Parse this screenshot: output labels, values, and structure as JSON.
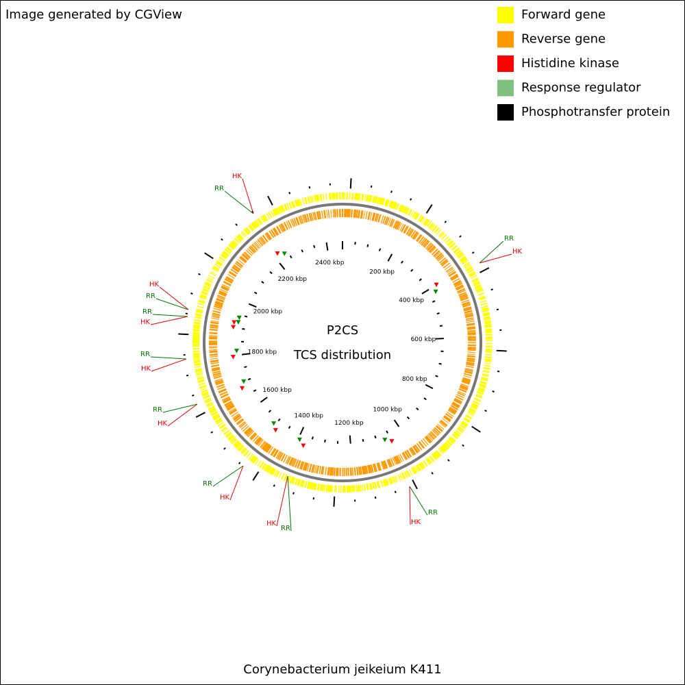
{
  "header": {
    "caption": "Image generated by CGView"
  },
  "legend": [
    {
      "label": "Forward gene",
      "color": "#ffff00"
    },
    {
      "label": "Reverse gene",
      "color": "#ff9900"
    },
    {
      "label": "Histidine kinase",
      "color": "#ff0000"
    },
    {
      "label": "Response regulator",
      "color": "#80c080"
    },
    {
      "label": "Phosphotransfer protein",
      "color": "#000000"
    }
  ],
  "center": {
    "title": "P2CS",
    "subtitle": "TCS distribution"
  },
  "ruler": [
    "200 kbp",
    "400 kbp",
    "600 kbp",
    "800 kbp",
    "1000 kbp",
    "1200 kbp",
    "1400 kbp",
    "1600 kbp",
    "1800 kbp",
    "2000 kbp",
    "2200 kbp",
    "2400 kbp"
  ],
  "callouts": [
    {
      "labels": [
        {
          "text": "HK",
          "color": "#dd0000"
        },
        {
          "text": "RR",
          "color": "#007700"
        }
      ]
    },
    {
      "labels": [
        {
          "text": "RR",
          "color": "#007700"
        },
        {
          "text": "HK",
          "color": "#dd0000"
        }
      ]
    },
    {
      "labels": [
        {
          "text": "HK",
          "color": "#dd0000"
        },
        {
          "text": "RR",
          "color": "#007700"
        }
      ]
    },
    {
      "labels": [
        {
          "text": "RR",
          "color": "#007700"
        },
        {
          "text": "HK",
          "color": "#dd0000"
        }
      ]
    },
    {
      "labels": [
        {
          "text": "RR",
          "color": "#007700"
        },
        {
          "text": "HK",
          "color": "#dd0000"
        }
      ]
    },
    {
      "labels": [
        {
          "text": "RR",
          "color": "#007700"
        },
        {
          "text": "HK",
          "color": "#dd0000"
        }
      ]
    },
    {
      "labels": [
        {
          "text": "RR",
          "color": "#007700"
        },
        {
          "text": "HK",
          "color": "#dd0000"
        }
      ]
    },
    {
      "labels": [
        {
          "text": "HK",
          "color": "#dd0000"
        },
        {
          "text": "RR",
          "color": "#007700"
        }
      ]
    },
    {
      "labels": [
        {
          "text": "RR",
          "color": "#007700"
        },
        {
          "text": "HK",
          "color": "#dd0000"
        }
      ]
    }
  ],
  "footer": {
    "organism": "Corynebacterium jeikeium K411"
  }
}
